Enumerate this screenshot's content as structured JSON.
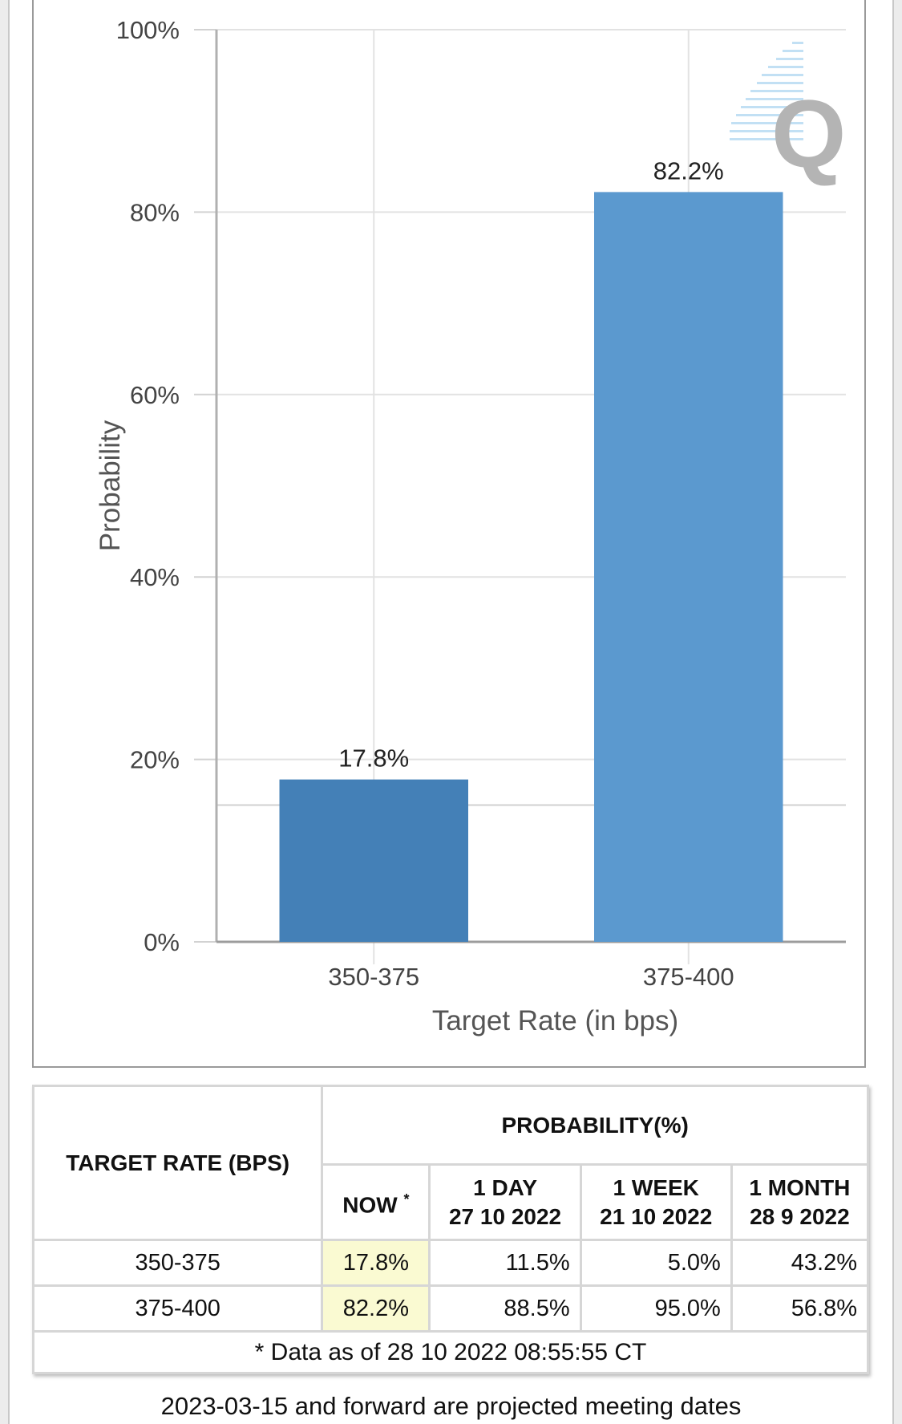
{
  "chart_data": {
    "type": "bar",
    "categories": [
      "350-375",
      "375-400"
    ],
    "values": [
      17.8,
      82.2
    ],
    "value_labels": [
      "17.8%",
      "82.2%"
    ],
    "bar_colors": [
      "#4480b7",
      "#5b99cf"
    ],
    "xlabel": "Target Rate (in bps)",
    "ylabel": "Probability",
    "ylim": [
      0,
      100
    ],
    "yticks": [
      "0%",
      "20%",
      "40%",
      "60%",
      "80%",
      "100%"
    ],
    "ytick_values": [
      0,
      20,
      40,
      60,
      80,
      100
    ],
    "grid": true
  },
  "table": {
    "header_rate": "TARGET RATE (BPS)",
    "header_prob": "PROBABILITY(%)",
    "col_now": "NOW",
    "col_now_mark": "*",
    "col_day_title": "1 DAY",
    "col_day_date": "27 10 2022",
    "col_week_title": "1 WEEK",
    "col_week_date": "21 10 2022",
    "col_month_title": "1 MONTH",
    "col_month_date": "28 9 2022",
    "rows": [
      {
        "rate": "350-375",
        "now": "17.8%",
        "day": "11.5%",
        "week": "5.0%",
        "month": "43.2%"
      },
      {
        "rate": "375-400",
        "now": "82.2%",
        "day": "88.5%",
        "week": "95.0%",
        "month": "56.8%"
      }
    ],
    "footnote": "* Data as of 28 10 2022 08:55:55 CT"
  },
  "caption": "2023-03-15 and forward are projected meeting dates",
  "colors": {
    "now_highlight": "#fafad2",
    "grid": "#e2e2e2"
  }
}
